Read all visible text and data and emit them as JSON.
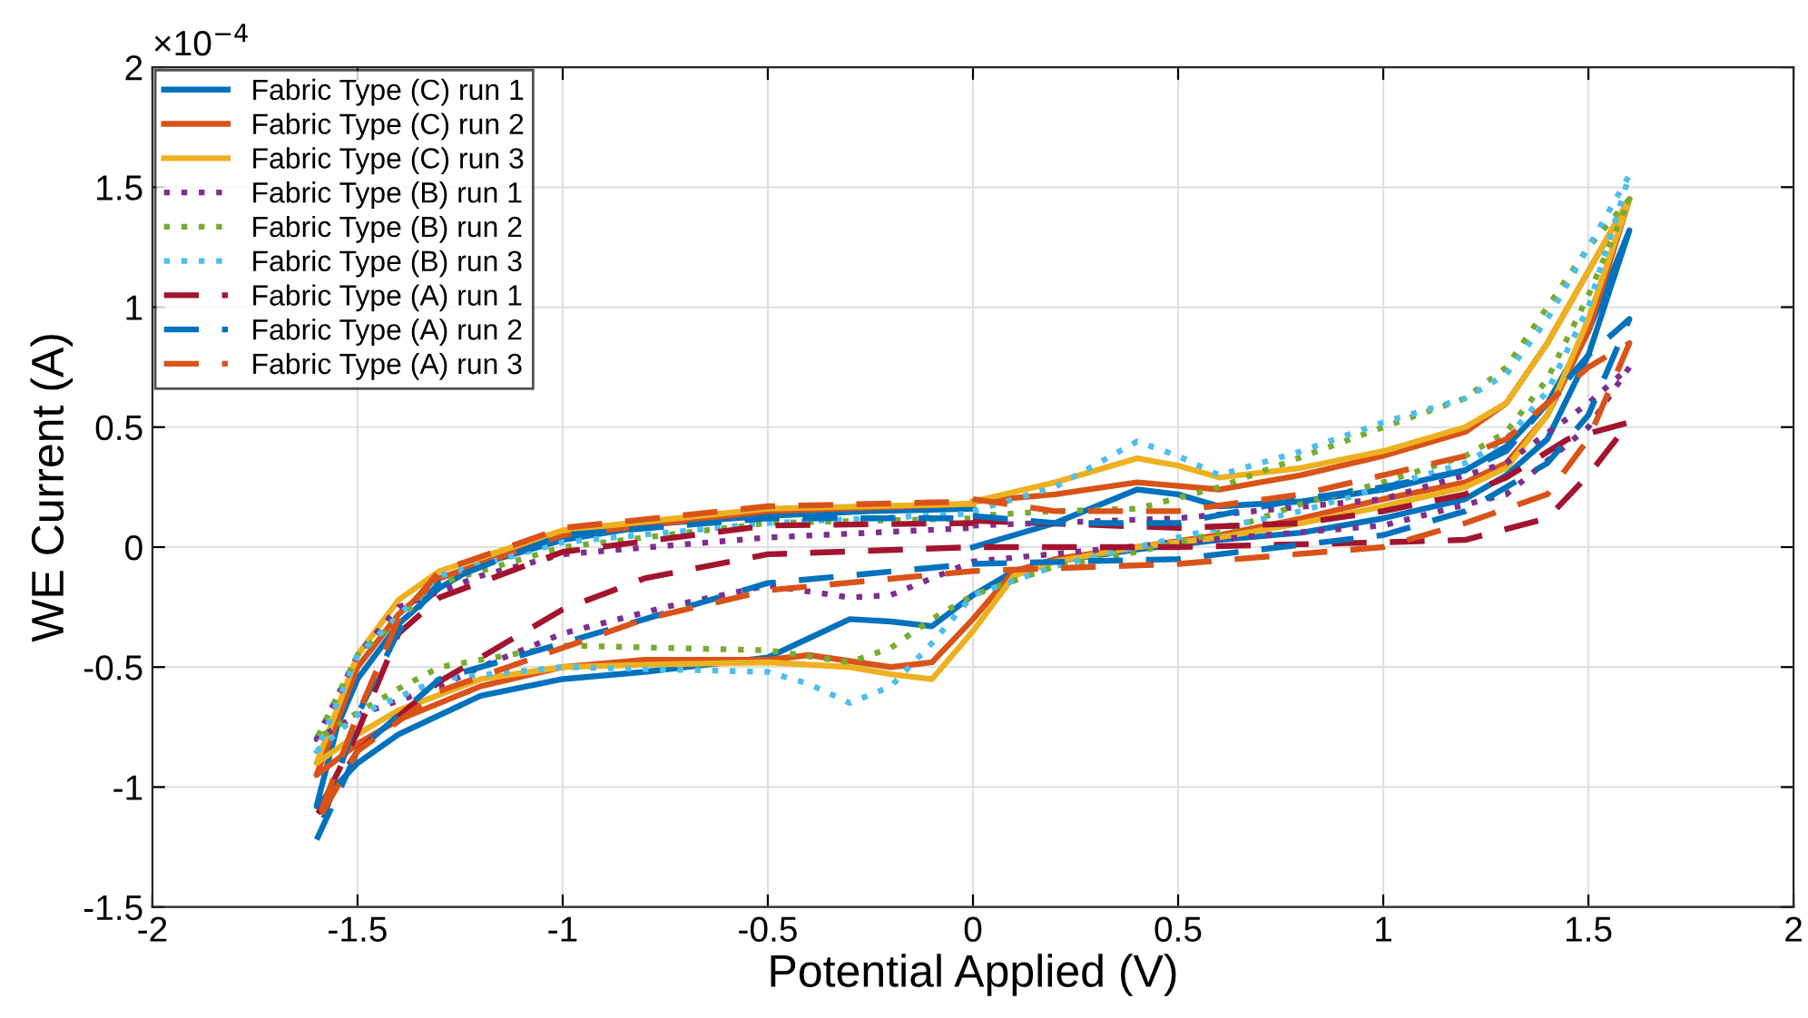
{
  "chart_data": {
    "type": "line",
    "xlabel": "Potential Applied (V)",
    "ylabel": "WE Current (A)",
    "annotations": [
      "×10$^{−4}$"
    ],
    "xlim": [
      -2,
      2
    ],
    "xticks": [
      -2,
      -1.5,
      -1,
      -0.5,
      0,
      0.5,
      1,
      1.5,
      2
    ],
    "ylim": [
      -1.5,
      2
    ],
    "yticks": [
      -1.5,
      -1,
      -0.5,
      0,
      0.5,
      1,
      1.5,
      2
    ],
    "grid": true,
    "legend": "top left",
    "series": [
      {
        "name": "Fabric Type (C) run 1",
        "color": "#0072bd",
        "line_style": "solid",
        "x": [
          0,
          0.2,
          0.4,
          0.5,
          0.6,
          0.8,
          1.0,
          1.2,
          1.3,
          1.4,
          1.5,
          1.6,
          1.5,
          1.4,
          1.3,
          1.2,
          1.0,
          0.8,
          0.6,
          0.4,
          0.2,
          0.1,
          0,
          -0.1,
          -0.2,
          -0.3,
          -0.4,
          -0.5,
          -0.8,
          -1.0,
          -1.2,
          -1.4,
          -1.5,
          -1.6,
          -1.55,
          -1.5,
          -1.4,
          -1.3,
          -1.2,
          -1.0,
          -0.75,
          -0.5,
          -0.25,
          0
        ],
        "values": [
          0.0,
          0.1,
          0.24,
          0.22,
          0.17,
          0.19,
          0.24,
          0.32,
          0.42,
          0.6,
          0.9,
          1.32,
          0.8,
          0.45,
          0.3,
          0.2,
          0.12,
          0.06,
          0.03,
          -0.01,
          -0.06,
          -0.1,
          -0.2,
          -0.33,
          -0.31,
          -0.3,
          -0.38,
          -0.46,
          -0.52,
          -0.55,
          -0.62,
          -0.78,
          -0.9,
          -1.08,
          -0.75,
          -0.55,
          -0.32,
          -0.17,
          -0.07,
          0.03,
          0.1,
          0.13,
          0.15,
          0.16
        ]
      },
      {
        "name": "Fabric Type (C) run 2",
        "color": "#d95319",
        "line_style": "solid",
        "x": [
          0,
          0.2,
          0.4,
          0.6,
          0.8,
          1.0,
          1.2,
          1.3,
          1.4,
          1.5,
          1.6,
          1.5,
          1.4,
          1.3,
          1.2,
          1.0,
          0.8,
          0.6,
          0.4,
          0.2,
          0.1,
          0,
          -0.1,
          -0.2,
          -0.4,
          -0.5,
          -0.8,
          -1.0,
          -1.2,
          -1.4,
          -1.5,
          -1.6,
          -1.5,
          -1.4,
          -1.3,
          -1.0,
          -0.5,
          0
        ],
        "values": [
          0.19,
          0.22,
          0.27,
          0.24,
          0.3,
          0.38,
          0.48,
          0.6,
          0.85,
          1.15,
          1.45,
          0.9,
          0.55,
          0.35,
          0.27,
          0.2,
          0.12,
          0.05,
          0.0,
          -0.05,
          -0.1,
          -0.3,
          -0.48,
          -0.5,
          -0.45,
          -0.47,
          -0.47,
          -0.5,
          -0.58,
          -0.72,
          -0.82,
          -0.95,
          -0.5,
          -0.28,
          -0.13,
          0.05,
          0.15,
          0.18
        ]
      },
      {
        "name": "Fabric Type (C) run 3",
        "color": "#edb120",
        "line_style": "solid",
        "x": [
          0,
          0.2,
          0.4,
          0.5,
          0.6,
          0.8,
          1.0,
          1.2,
          1.3,
          1.4,
          1.5,
          1.6,
          1.5,
          1.4,
          1.3,
          1.2,
          1.0,
          0.8,
          0.6,
          0.4,
          0.2,
          0.1,
          0,
          -0.1,
          -0.2,
          -0.3,
          -0.5,
          -0.8,
          -1.0,
          -1.2,
          -1.4,
          -1.5,
          -1.6,
          -1.5,
          -1.4,
          -1.3,
          -1.0,
          -0.5,
          0
        ],
        "values": [
          0.19,
          0.27,
          0.37,
          0.34,
          0.29,
          0.33,
          0.4,
          0.5,
          0.6,
          0.85,
          1.15,
          1.45,
          0.95,
          0.55,
          0.33,
          0.25,
          0.17,
          0.1,
          0.04,
          0.0,
          -0.06,
          -0.12,
          -0.35,
          -0.55,
          -0.53,
          -0.5,
          -0.48,
          -0.49,
          -0.5,
          -0.55,
          -0.68,
          -0.78,
          -0.9,
          -0.45,
          -0.22,
          -0.1,
          0.07,
          0.16,
          0.18
        ]
      },
      {
        "name": "Fabric Type (B) run 1",
        "color": "#7e2f8e",
        "line_style": "dotted",
        "x": [
          0,
          0.5,
          1.0,
          1.3,
          1.5,
          1.6,
          1.5,
          1.3,
          1.0,
          0.5,
          0,
          -0.2,
          -0.3,
          -0.5,
          -0.75,
          -1.0,
          -1.2,
          -1.3,
          -1.5,
          -1.6,
          -1.5,
          -1.4,
          -1.2,
          -1.0,
          -0.5,
          0
        ],
        "values": [
          0.09,
          0.12,
          0.2,
          0.35,
          0.6,
          0.75,
          0.5,
          0.22,
          0.09,
          0.02,
          -0.06,
          -0.2,
          -0.21,
          -0.16,
          -0.25,
          -0.36,
          -0.5,
          -0.58,
          -0.7,
          -0.8,
          -0.45,
          -0.25,
          -0.12,
          -0.03,
          0.04,
          0.08
        ]
      },
      {
        "name": "Fabric Type (B) run 2",
        "color": "#77ac30",
        "line_style": "dotted",
        "x": [
          0,
          0.2,
          0.4,
          0.6,
          1.0,
          1.2,
          1.3,
          1.4,
          1.5,
          1.6,
          1.5,
          1.4,
          1.3,
          1.2,
          1.0,
          0.8,
          0.6,
          0.4,
          0.2,
          0,
          -0.1,
          -0.2,
          -0.3,
          -0.5,
          -1.0,
          -1.3,
          -1.4,
          -1.5,
          -1.6,
          -1.5,
          -1.3,
          -1.0,
          -0.5,
          0
        ],
        "values": [
          0.13,
          0.15,
          0.16,
          0.25,
          0.5,
          0.62,
          0.75,
          1.0,
          1.25,
          1.45,
          1.05,
          0.7,
          0.48,
          0.38,
          0.27,
          0.18,
          0.06,
          -0.02,
          -0.08,
          -0.2,
          -0.3,
          -0.42,
          -0.48,
          -0.43,
          -0.41,
          -0.5,
          -0.59,
          -0.69,
          -0.8,
          -0.45,
          -0.15,
          0.0,
          0.1,
          0.12
        ]
      },
      {
        "name": "Fabric Type (B) run 3",
        "color": "#4dbeee",
        "line_style": "dotted",
        "x": [
          0,
          0.2,
          0.4,
          0.5,
          0.6,
          0.8,
          1.0,
          1.2,
          1.3,
          1.4,
          1.5,
          1.6,
          1.5,
          1.4,
          1.3,
          1.2,
          1.0,
          0.8,
          0.6,
          0.4,
          0.2,
          0,
          -0.1,
          -0.2,
          -0.3,
          -0.4,
          -0.5,
          -1.0,
          -1.3,
          -1.5,
          -1.6,
          -1.5,
          -1.3,
          -1.0,
          -0.5,
          0
        ],
        "values": [
          0.15,
          0.25,
          0.44,
          0.38,
          0.3,
          0.4,
          0.52,
          0.62,
          0.72,
          0.95,
          1.25,
          1.55,
          1.0,
          0.65,
          0.45,
          0.35,
          0.25,
          0.15,
          0.08,
          0.0,
          -0.08,
          -0.2,
          -0.4,
          -0.58,
          -0.65,
          -0.57,
          -0.52,
          -0.5,
          -0.55,
          -0.7,
          -0.85,
          -0.45,
          -0.12,
          0.02,
          0.1,
          0.14
        ]
      },
      {
        "name": "Fabric Type (A) run 1",
        "color": "#a2142f",
        "line_style": "dashed",
        "x": [
          0,
          0.5,
          0.8,
          1.0,
          1.2,
          1.3,
          1.45,
          1.6,
          1.5,
          1.4,
          1.2,
          1.0,
          0.5,
          0,
          -0.5,
          -0.8,
          -1.0,
          -1.3,
          -1.5,
          -1.6,
          -1.5,
          -1.4,
          -1.3,
          -1.0,
          -0.5,
          0
        ],
        "values": [
          0.11,
          0.08,
          0.1,
          0.15,
          0.22,
          0.29,
          0.45,
          0.52,
          0.3,
          0.12,
          0.03,
          0.02,
          0.0,
          0.0,
          -0.03,
          -0.13,
          -0.26,
          -0.56,
          -0.85,
          -1.12,
          -0.77,
          -0.36,
          -0.21,
          -0.02,
          0.09,
          0.1
        ]
      },
      {
        "name": "Fabric Type (A) run 2",
        "color": "#0072bd",
        "line_style": "dashed",
        "x": [
          0,
          0.2,
          0.5,
          0.8,
          1.0,
          1.2,
          1.3,
          1.4,
          1.5,
          1.6,
          1.5,
          1.4,
          1.2,
          1.0,
          0.5,
          0,
          -0.5,
          -0.8,
          -1.0,
          -1.3,
          -1.5,
          -1.6,
          -1.5,
          -1.4,
          -1.3,
          -1.0,
          -0.5,
          0
        ],
        "values": [
          0.13,
          0.1,
          0.1,
          0.2,
          0.25,
          0.32,
          0.4,
          0.6,
          0.8,
          0.95,
          0.55,
          0.35,
          0.15,
          0.05,
          -0.05,
          -0.07,
          -0.15,
          -0.3,
          -0.4,
          -0.55,
          -0.85,
          -1.22,
          -0.7,
          -0.35,
          -0.15,
          0.05,
          0.12,
          0.12
        ]
      },
      {
        "name": "Fabric Type (A) run 3",
        "color": "#d95319",
        "line_style": "dashed",
        "x": [
          0,
          0.2,
          0.5,
          0.8,
          1.0,
          1.2,
          1.3,
          1.4,
          1.5,
          1.6,
          1.5,
          1.4,
          1.2,
          1.0,
          0.5,
          0,
          -0.5,
          -0.8,
          -1.0,
          -1.3,
          -1.5,
          -1.6,
          -1.5,
          -1.4,
          -1.3,
          -1.0,
          -0.5,
          0
        ],
        "values": [
          0.2,
          0.15,
          0.15,
          0.22,
          0.3,
          0.38,
          0.45,
          0.6,
          0.75,
          0.85,
          0.45,
          0.22,
          0.1,
          0.0,
          -0.07,
          -0.1,
          -0.18,
          -0.3,
          -0.42,
          -0.6,
          -0.85,
          -1.15,
          -0.7,
          -0.3,
          -0.1,
          0.08,
          0.17,
          0.19
        ]
      }
    ]
  }
}
